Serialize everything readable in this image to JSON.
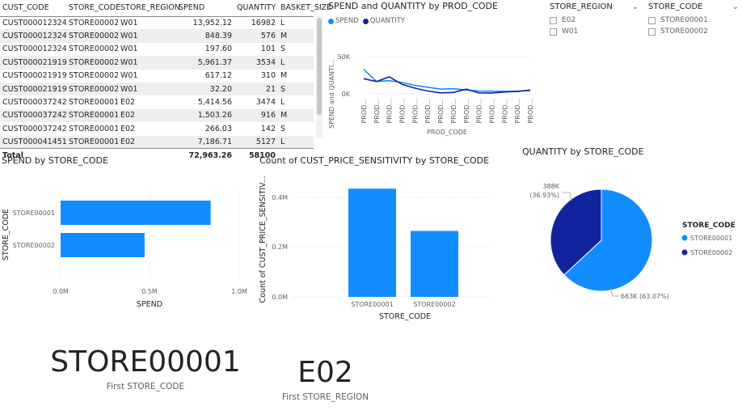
{
  "colors": {
    "series1": "#118dff",
    "series2": "#12239e",
    "accent": "#118dff"
  },
  "table": {
    "columns": [
      "CUST_CODE",
      "STORE_CODE",
      "STORE_REGION",
      "SPEND",
      "QUANTITY",
      "BASKET_SIZE"
    ],
    "rows": [
      [
        "CUST0000123240",
        "STORE00002",
        "W01",
        "13,952.12",
        "16982",
        "L"
      ],
      [
        "CUST0000123240",
        "STORE00002",
        "W01",
        "848.39",
        "576",
        "M"
      ],
      [
        "CUST0000123240",
        "STORE00002",
        "W01",
        "197.60",
        "101",
        "S"
      ],
      [
        "CUST0000219191",
        "STORE00002",
        "W01",
        "5,961.37",
        "3534",
        "L"
      ],
      [
        "CUST0000219191",
        "STORE00002",
        "W01",
        "617.12",
        "310",
        "M"
      ],
      [
        "CUST0000219191",
        "STORE00002",
        "W01",
        "32.20",
        "21",
        "S"
      ],
      [
        "CUST0000372422",
        "STORE00001",
        "E02",
        "5,414.56",
        "3474",
        "L"
      ],
      [
        "CUST0000372422",
        "STORE00001",
        "E02",
        "1,503.26",
        "916",
        "M"
      ],
      [
        "CUST0000372422",
        "STORE00001",
        "E02",
        "266.03",
        "142",
        "S"
      ],
      [
        "CUST0000414514",
        "STORE00001",
        "E02",
        "7,186.71",
        "5127",
        "L"
      ]
    ],
    "total": {
      "label": "Total",
      "spend": "72,963.26",
      "quantity": "58100"
    }
  },
  "line_chart": {
    "title": "SPEND and QUANTITY by PROD_CODE",
    "legend": [
      "SPEND",
      "QUANTITY"
    ],
    "ylabel": "SPEND and QUANTI...",
    "xlabel": "PROD_CODE",
    "y_ticks": [
      "50K",
      "0K"
    ],
    "x_tick_label": "PROD...",
    "chart_data": {
      "type": "line",
      "ylim": [
        0,
        60000
      ],
      "series": [
        {
          "name": "SPEND",
          "values": [
            26000,
            13000,
            14000,
            12000,
            9000,
            7000,
            5000,
            5500,
            4000,
            3000,
            2800,
            2500,
            2800,
            3500
          ]
        },
        {
          "name": "QUANTITY",
          "values": [
            16000,
            13000,
            18000,
            10000,
            6000,
            3000,
            1000,
            1500,
            5000,
            1000,
            800,
            2000,
            2500,
            4000
          ]
        }
      ]
    }
  },
  "slicer_region": {
    "title": "STORE_REGION",
    "items": [
      "E02",
      "W01"
    ]
  },
  "slicer_store": {
    "title": "STORE_CODE",
    "items": [
      "STORE00001",
      "STORE00002"
    ]
  },
  "bar_chart": {
    "title": "SPEND by STORE_CODE",
    "ylabel": "STORE_CODE",
    "xlabel": "SPEND",
    "x_ticks": [
      "0.0M",
      "0.5M",
      "1.0M"
    ],
    "chart_data": {
      "type": "bar",
      "orientation": "horizontal",
      "categories": [
        "STORE00001",
        "STORE00002"
      ],
      "values": [
        0.84,
        0.47
      ],
      "xlim": [
        0,
        1.0
      ]
    }
  },
  "column_chart": {
    "title": "Count of CUST_PRICE_SENSITIVITY by STORE_CODE",
    "ylabel": "Count of CUST_PRICE_SENSITIV...",
    "xlabel": "STORE_CODE",
    "y_ticks": [
      "0.4M",
      "0.2M",
      "0.0M"
    ],
    "chart_data": {
      "type": "bar",
      "categories": [
        "STORE00001",
        "STORE00002"
      ],
      "values": [
        0.435,
        0.265
      ],
      "ylim": [
        0,
        0.5
      ]
    }
  },
  "pie_chart": {
    "title": "QUANTITY by STORE_CODE",
    "legend_title": "STORE_CODE",
    "legend": [
      "STORE00001",
      "STORE00002"
    ],
    "labels": [
      "663K (63.07%)",
      "388K",
      "(36.93%)"
    ],
    "chart_data": {
      "type": "pie",
      "categories": [
        "STORE00001",
        "STORE00002"
      ],
      "values": [
        663,
        388
      ]
    }
  },
  "card_store": {
    "value": "STORE00001",
    "label": "First STORE_CODE"
  },
  "card_region": {
    "value": "E02",
    "label": "First STORE_REGION"
  }
}
